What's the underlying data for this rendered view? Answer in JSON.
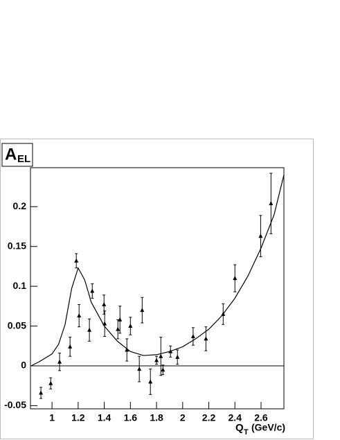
{
  "chart_data": {
    "type": "scatter",
    "ylabel": {
      "main": "A",
      "sub": "EL"
    },
    "xlabel": {
      "main": "Q",
      "sub": "T",
      "suffix": "(GeV/c)"
    },
    "xlim": [
      0.835,
      2.775
    ],
    "ylim": [
      -0.054,
      0.249
    ],
    "xticks": [
      1,
      1.2,
      1.4,
      1.6,
      1.8,
      2,
      2.2,
      2.4,
      2.6
    ],
    "yticks": [
      -0.05,
      0,
      0.05,
      0.1,
      0.15,
      0.2
    ],
    "reference_line": 0,
    "color": "#000000",
    "points": {
      "x": [
        0.915,
        0.99,
        1.058,
        1.138,
        1.186,
        1.207,
        1.286,
        1.308,
        1.398,
        1.403,
        1.504,
        1.52,
        1.573,
        1.6,
        1.668,
        1.69,
        1.753,
        1.8,
        1.833,
        1.849,
        1.907,
        1.96,
        2.08,
        2.178,
        2.31,
        2.4,
        2.597,
        2.676
      ],
      "y": [
        -0.034,
        -0.022,
        0.005,
        0.024,
        0.132,
        0.063,
        0.045,
        0.094,
        0.077,
        0.053,
        0.046,
        0.058,
        0.02,
        0.05,
        -0.004,
        0.07,
        -0.02,
        0.007,
        0.012,
        -0.005,
        0.018,
        0.011,
        0.037,
        0.034,
        0.065,
        0.11,
        0.163,
        0.204
      ],
      "yerr": [
        0.007,
        0.007,
        0.011,
        0.012,
        0.009,
        0.014,
        0.014,
        0.009,
        0.012,
        0.016,
        0.012,
        0.017,
        0.014,
        0.011,
        0.016,
        0.016,
        0.016,
        0.005,
        0.024,
        0.006,
        0.007,
        0.009,
        0.011,
        0.015,
        0.013,
        0.017,
        0.026,
        0.038
      ]
    },
    "curve": {
      "x": [
        0.84,
        0.9,
        1.0,
        1.05,
        1.1,
        1.15,
        1.2,
        1.25,
        1.3,
        1.4,
        1.5,
        1.6,
        1.7,
        1.8,
        1.9,
        2.0,
        2.1,
        2.2,
        2.3,
        2.4,
        2.5,
        2.6,
        2.7,
        2.775
      ],
      "y": [
        0.0,
        0.005,
        0.015,
        0.027,
        0.052,
        0.097,
        0.123,
        0.108,
        0.08,
        0.05,
        0.031,
        0.018,
        0.013,
        0.014,
        0.018,
        0.024,
        0.034,
        0.046,
        0.063,
        0.085,
        0.113,
        0.148,
        0.19,
        0.24
      ]
    }
  }
}
